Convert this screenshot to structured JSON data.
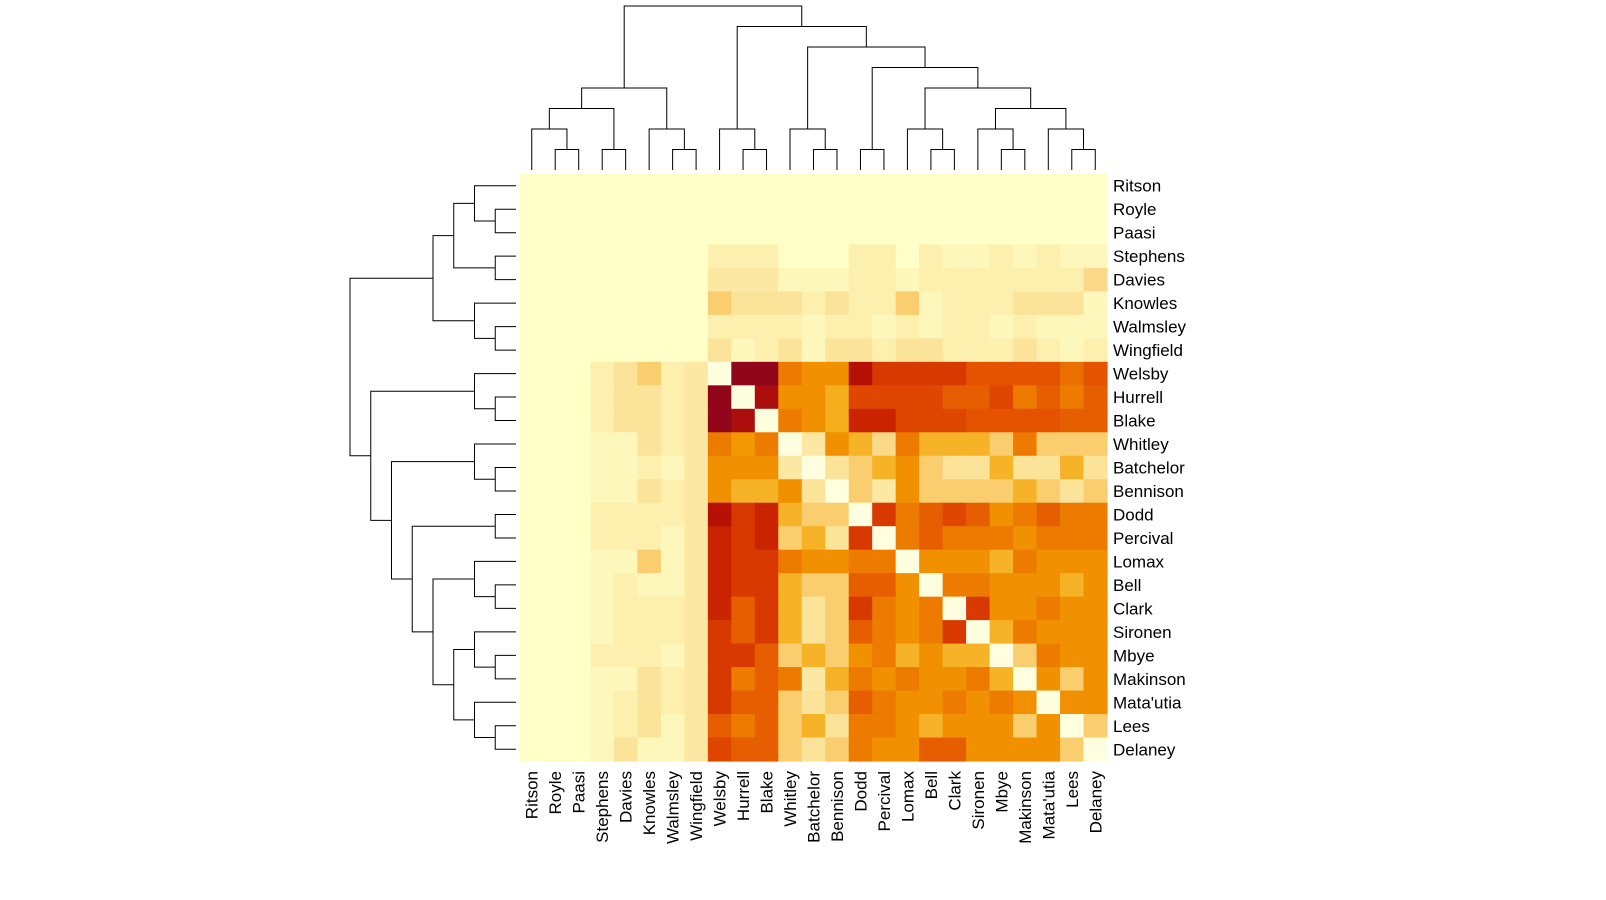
{
  "chart_data": {
    "type": "heatmap",
    "title": "",
    "xlabel": "",
    "ylabel": "",
    "colors": {
      "low": "#ffffc8",
      "mid_low": "#fbd98a",
      "mid": "#f5a400",
      "mid_high": "#e55200",
      "high": "#c21500",
      "max": "#800026",
      "diag": "#ffffe0"
    },
    "dendrograms": {
      "rows": true,
      "columns": true
    },
    "row_labels": [
      "Ritson",
      "Royle",
      "Paasi",
      "Stephens",
      "Davies",
      "Knowles",
      "Walmsley",
      "Wingfield",
      "Welsby",
      "Hurrell",
      "Blake",
      "Whitley",
      "Batchelor",
      "Bennison",
      "Dodd",
      "Percival",
      "Lomax",
      "Bell",
      "Clark",
      "Sironen",
      "Mbye",
      "Makinson",
      "Mata'utia",
      "Lees",
      "Delaney"
    ],
    "col_labels": [
      "Ritson",
      "Royle",
      "Paasi",
      "Stephens",
      "Davies",
      "Knowles",
      "Walmsley",
      "Wingfield",
      "Welsby",
      "Hurrell",
      "Blake",
      "Whitley",
      "Batchelor",
      "Bennison",
      "Dodd",
      "Percival",
      "Lomax",
      "Bell",
      "Clark",
      "Sironen",
      "Mbye",
      "Makinson",
      "Mata'utia",
      "Lees",
      "Delaney"
    ],
    "value_scale": [
      0,
      1
    ],
    "values": [
      [
        0,
        0,
        0,
        0,
        0,
        0,
        0,
        0,
        0,
        0,
        0,
        0,
        0,
        0,
        0,
        0,
        0,
        0,
        0,
        0,
        0,
        0,
        0,
        0,
        0
      ],
      [
        0,
        0,
        0,
        0,
        0,
        0,
        0,
        0,
        0,
        0,
        0,
        0,
        0,
        0,
        0,
        0,
        0,
        0,
        0,
        0,
        0,
        0,
        0,
        0,
        0
      ],
      [
        0,
        0,
        0,
        0,
        0,
        0,
        0,
        0,
        0,
        0,
        0,
        0,
        0,
        0,
        0,
        0,
        0,
        0,
        0,
        0,
        0,
        0,
        0,
        0,
        0
      ],
      [
        0,
        0,
        0,
        0,
        0,
        0,
        0,
        0,
        0.08,
        0.08,
        0.08,
        0,
        0,
        0,
        0.08,
        0.08,
        0,
        0.08,
        0.04,
        0.04,
        0.08,
        0.04,
        0.08,
        0.04,
        0.04
      ],
      [
        0,
        0,
        0,
        0,
        0,
        0,
        0,
        0,
        0.12,
        0.12,
        0.12,
        0.04,
        0.04,
        0.04,
        0.08,
        0.08,
        0.04,
        0.08,
        0.08,
        0.08,
        0.08,
        0.08,
        0.08,
        0.08,
        0.2
      ],
      [
        0,
        0,
        0,
        0,
        0,
        0,
        0,
        0,
        0.25,
        0.15,
        0.15,
        0.15,
        0.08,
        0.15,
        0.08,
        0.08,
        0.25,
        0.04,
        0.08,
        0.08,
        0.08,
        0.15,
        0.15,
        0.15,
        0.04
      ],
      [
        0,
        0,
        0,
        0,
        0,
        0,
        0,
        0,
        0.08,
        0.08,
        0.08,
        0.08,
        0.04,
        0.08,
        0.08,
        0.04,
        0.08,
        0.04,
        0.08,
        0.08,
        0.04,
        0.08,
        0.04,
        0.04,
        0.04
      ],
      [
        0,
        0,
        0,
        0,
        0,
        0,
        0,
        0,
        0.15,
        0.04,
        0.08,
        0.15,
        0.04,
        0.15,
        0.15,
        0.08,
        0.15,
        0.15,
        0.08,
        0.08,
        0.08,
        0.15,
        0.08,
        0.04,
        0.08
      ],
      [
        0,
        0,
        0,
        0.08,
        0.15,
        0.25,
        0.08,
        0.12,
        0.02,
        0.95,
        0.95,
        0.55,
        0.5,
        0.5,
        0.85,
        0.72,
        0.72,
        0.72,
        0.72,
        0.65,
        0.65,
        0.65,
        0.65,
        0.58,
        0.65
      ],
      [
        0,
        0,
        0,
        0.08,
        0.15,
        0.15,
        0.08,
        0.12,
        0.95,
        0.02,
        0.88,
        0.5,
        0.5,
        0.4,
        0.68,
        0.68,
        0.68,
        0.68,
        0.62,
        0.62,
        0.68,
        0.55,
        0.62,
        0.55,
        0.62
      ],
      [
        0,
        0,
        0,
        0.08,
        0.15,
        0.15,
        0.08,
        0.12,
        0.95,
        0.88,
        0.02,
        0.55,
        0.5,
        0.4,
        0.78,
        0.78,
        0.68,
        0.68,
        0.68,
        0.65,
        0.65,
        0.65,
        0.65,
        0.62,
        0.62
      ],
      [
        0,
        0,
        0,
        0.04,
        0.04,
        0.15,
        0.08,
        0.12,
        0.55,
        0.48,
        0.55,
        0.02,
        0.12,
        0.5,
        0.38,
        0.2,
        0.55,
        0.38,
        0.38,
        0.38,
        0.25,
        0.55,
        0.25,
        0.25,
        0.25
      ],
      [
        0,
        0,
        0,
        0.04,
        0.04,
        0.08,
        0.04,
        0.12,
        0.5,
        0.5,
        0.5,
        0.12,
        0.02,
        0.15,
        0.25,
        0.38,
        0.5,
        0.25,
        0.15,
        0.15,
        0.38,
        0.15,
        0.15,
        0.38,
        0.15
      ],
      [
        0,
        0,
        0,
        0.04,
        0.04,
        0.15,
        0.08,
        0.12,
        0.5,
        0.38,
        0.38,
        0.5,
        0.15,
        0.02,
        0.25,
        0.12,
        0.5,
        0.25,
        0.25,
        0.25,
        0.25,
        0.38,
        0.25,
        0.15,
        0.25
      ],
      [
        0,
        0,
        0,
        0.08,
        0.08,
        0.08,
        0.08,
        0.12,
        0.85,
        0.72,
        0.78,
        0.38,
        0.25,
        0.25,
        0.02,
        0.72,
        0.55,
        0.62,
        0.68,
        0.62,
        0.5,
        0.55,
        0.62,
        0.55,
        0.55
      ],
      [
        0,
        0,
        0,
        0.08,
        0.08,
        0.08,
        0.04,
        0.12,
        0.78,
        0.72,
        0.78,
        0.25,
        0.38,
        0.15,
        0.72,
        0.02,
        0.55,
        0.62,
        0.55,
        0.55,
        0.55,
        0.5,
        0.55,
        0.55,
        0.55
      ],
      [
        0,
        0,
        0,
        0.04,
        0.04,
        0.25,
        0.04,
        0.12,
        0.78,
        0.72,
        0.72,
        0.55,
        0.5,
        0.5,
        0.55,
        0.55,
        0.02,
        0.5,
        0.5,
        0.5,
        0.38,
        0.55,
        0.5,
        0.5,
        0.5
      ],
      [
        0,
        0,
        0,
        0.04,
        0.08,
        0.04,
        0.04,
        0.12,
        0.78,
        0.72,
        0.72,
        0.38,
        0.25,
        0.25,
        0.62,
        0.62,
        0.5,
        0.02,
        0.55,
        0.55,
        0.5,
        0.5,
        0.5,
        0.38,
        0.5
      ],
      [
        0,
        0,
        0,
        0.04,
        0.08,
        0.08,
        0.08,
        0.12,
        0.78,
        0.62,
        0.72,
        0.38,
        0.15,
        0.25,
        0.72,
        0.55,
        0.5,
        0.55,
        0.02,
        0.72,
        0.5,
        0.5,
        0.55,
        0.5,
        0.5
      ],
      [
        0,
        0,
        0,
        0.04,
        0.08,
        0.08,
        0.08,
        0.12,
        0.72,
        0.62,
        0.72,
        0.38,
        0.15,
        0.25,
        0.62,
        0.55,
        0.5,
        0.55,
        0.72,
        0.02,
        0.38,
        0.55,
        0.5,
        0.5,
        0.5
      ],
      [
        0,
        0,
        0,
        0.08,
        0.08,
        0.08,
        0.04,
        0.12,
        0.72,
        0.72,
        0.62,
        0.25,
        0.38,
        0.25,
        0.5,
        0.55,
        0.38,
        0.5,
        0.38,
        0.38,
        0.02,
        0.25,
        0.55,
        0.5,
        0.5
      ],
      [
        0,
        0,
        0,
        0.04,
        0.04,
        0.15,
        0.08,
        0.12,
        0.72,
        0.55,
        0.62,
        0.55,
        0.12,
        0.38,
        0.55,
        0.5,
        0.55,
        0.5,
        0.5,
        0.55,
        0.38,
        0.02,
        0.5,
        0.25,
        0.5
      ],
      [
        0,
        0,
        0,
        0.04,
        0.08,
        0.15,
        0.08,
        0.12,
        0.72,
        0.62,
        0.62,
        0.25,
        0.15,
        0.25,
        0.62,
        0.55,
        0.5,
        0.5,
        0.55,
        0.5,
        0.55,
        0.5,
        0.02,
        0.5,
        0.5
      ],
      [
        0,
        0,
        0,
        0.04,
        0.08,
        0.15,
        0.04,
        0.12,
        0.62,
        0.55,
        0.62,
        0.25,
        0.38,
        0.15,
        0.55,
        0.55,
        0.5,
        0.38,
        0.5,
        0.5,
        0.5,
        0.25,
        0.5,
        0.02,
        0.25
      ],
      [
        0,
        0,
        0,
        0.04,
        0.15,
        0.04,
        0.04,
        0.12,
        0.68,
        0.62,
        0.62,
        0.25,
        0.15,
        0.25,
        0.55,
        0.5,
        0.5,
        0.62,
        0.62,
        0.5,
        0.5,
        0.5,
        0.5,
        0.25,
        0.02
      ]
    ]
  }
}
